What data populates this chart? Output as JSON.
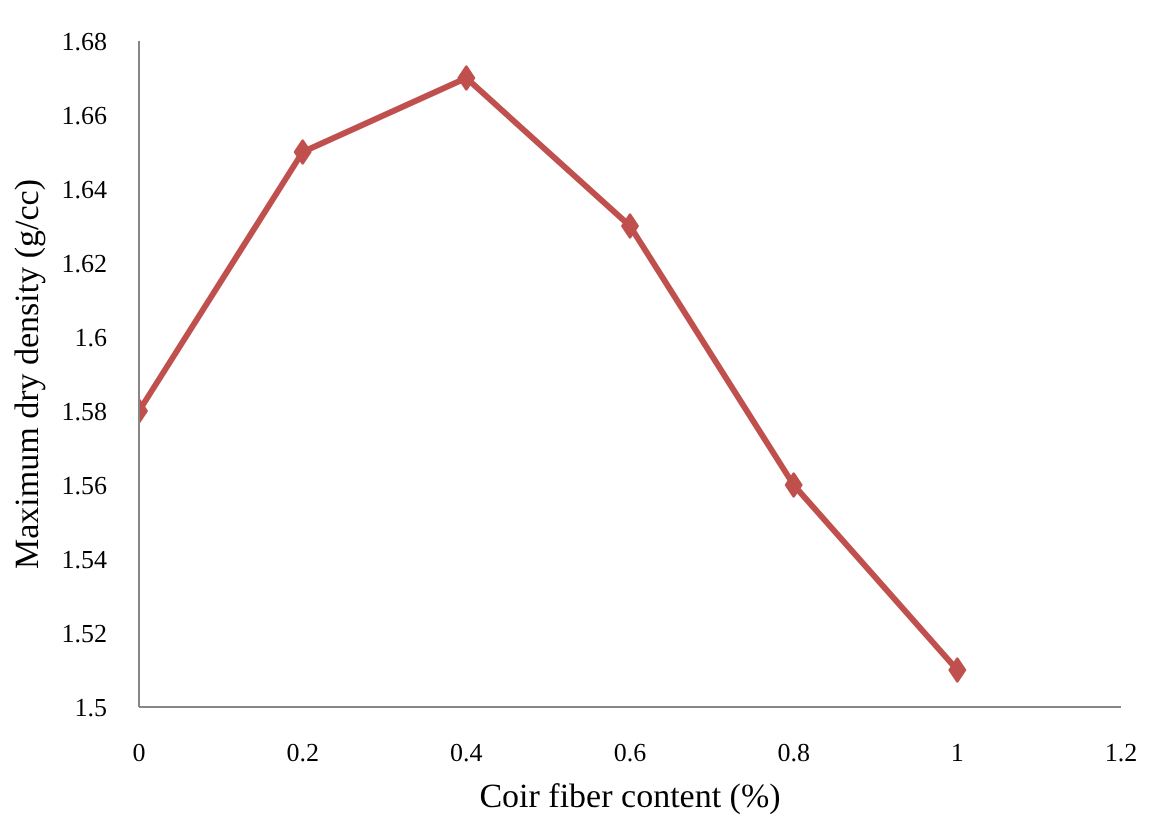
{
  "chart_data": {
    "type": "line",
    "xlabel": "Coir fiber content (%)",
    "ylabel": "Maximum dry density (g/cc)",
    "x": [
      0,
      0.2,
      0.4,
      0.6,
      0.8,
      1
    ],
    "series": [
      {
        "color": "#c0504d",
        "values": [
          1.58,
          1.65,
          1.67,
          1.63,
          1.56,
          1.51
        ]
      }
    ],
    "xlim": [
      0,
      1.2
    ],
    "xticks": [
      0,
      0.2,
      0.4,
      0.6,
      0.8,
      1,
      1.2
    ],
    "ylim": [
      1.5,
      1.68
    ],
    "yticks": [
      1.5,
      1.52,
      1.54,
      1.56,
      1.58,
      1.6,
      1.62,
      1.64,
      1.66,
      1.68
    ],
    "marker": "diamond",
    "line_style": "solid",
    "grid": false
  }
}
